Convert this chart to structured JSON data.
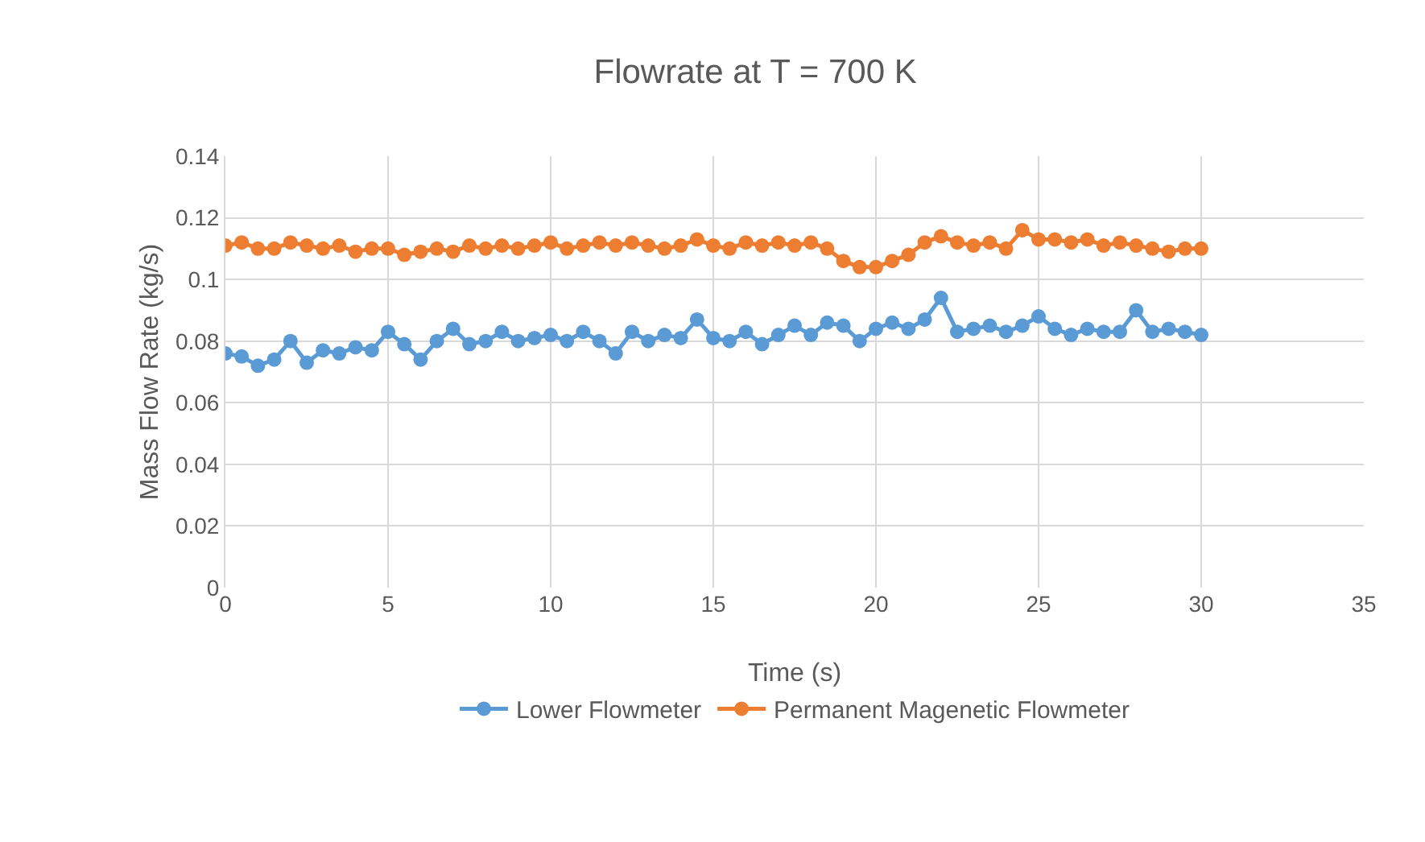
{
  "chart_data": {
    "type": "line",
    "title": "Flowrate at T = 700 K",
    "xlabel": "Time (s)",
    "ylabel": "Mass Flow Rate (kg/s)",
    "x": [
      0,
      0.5,
      1,
      1.5,
      2,
      2.5,
      3,
      3.5,
      4,
      4.5,
      5,
      5.5,
      6,
      6.5,
      7,
      7.5,
      8,
      8.5,
      9,
      9.5,
      10,
      10.5,
      11,
      11.5,
      12,
      12.5,
      13,
      13.5,
      14,
      14.5,
      15,
      15.5,
      16,
      16.5,
      17,
      17.5,
      18,
      18.5,
      19,
      19.5,
      20,
      20.5,
      21,
      21.5,
      22,
      22.5,
      23,
      23.5,
      24,
      24.5,
      25,
      25.5,
      26,
      26.5,
      27,
      27.5,
      28,
      28.5,
      29,
      29.5,
      30
    ],
    "series": [
      {
        "name": "Lower Flowmeter",
        "color": "#5b9bd5",
        "values": [
          0.076,
          0.075,
          0.072,
          0.074,
          0.08,
          0.073,
          0.077,
          0.076,
          0.078,
          0.077,
          0.083,
          0.079,
          0.074,
          0.08,
          0.084,
          0.079,
          0.08,
          0.083,
          0.08,
          0.081,
          0.082,
          0.08,
          0.083,
          0.08,
          0.076,
          0.083,
          0.08,
          0.082,
          0.081,
          0.087,
          0.081,
          0.08,
          0.083,
          0.079,
          0.082,
          0.085,
          0.082,
          0.086,
          0.085,
          0.08,
          0.084,
          0.086,
          0.084,
          0.087,
          0.094,
          0.083,
          0.084,
          0.085,
          0.083,
          0.085,
          0.088,
          0.084,
          0.082,
          0.084,
          0.083,
          0.083,
          0.09,
          0.083,
          0.084,
          0.083,
          0.082
        ]
      },
      {
        "name": "Permanent Magenetic Flowmeter",
        "color": "#ed7d31",
        "values": [
          0.111,
          0.112,
          0.11,
          0.11,
          0.112,
          0.111,
          0.11,
          0.111,
          0.109,
          0.11,
          0.11,
          0.108,
          0.109,
          0.11,
          0.109,
          0.111,
          0.11,
          0.111,
          0.11,
          0.111,
          0.112,
          0.11,
          0.111,
          0.112,
          0.111,
          0.112,
          0.111,
          0.11,
          0.111,
          0.113,
          0.111,
          0.11,
          0.112,
          0.111,
          0.112,
          0.111,
          0.112,
          0.11,
          0.106,
          0.104,
          0.104,
          0.106,
          0.108,
          0.112,
          0.114,
          0.112,
          0.111,
          0.112,
          0.11,
          0.116,
          0.113,
          0.113,
          0.112,
          0.113,
          0.111,
          0.112,
          0.111,
          0.11,
          0.109,
          0.11,
          0.11
        ]
      }
    ],
    "xlim": [
      0,
      35
    ],
    "xticks": [
      0,
      5,
      10,
      15,
      20,
      25,
      30,
      35
    ],
    "ylim": [
      0,
      0.14
    ],
    "yticks": [
      0,
      0.02,
      0.04,
      0.06,
      0.08,
      0.1,
      0.12,
      0.14
    ],
    "grid": true,
    "legend": "bottom",
    "marker": "circle",
    "line_style": "solid"
  }
}
